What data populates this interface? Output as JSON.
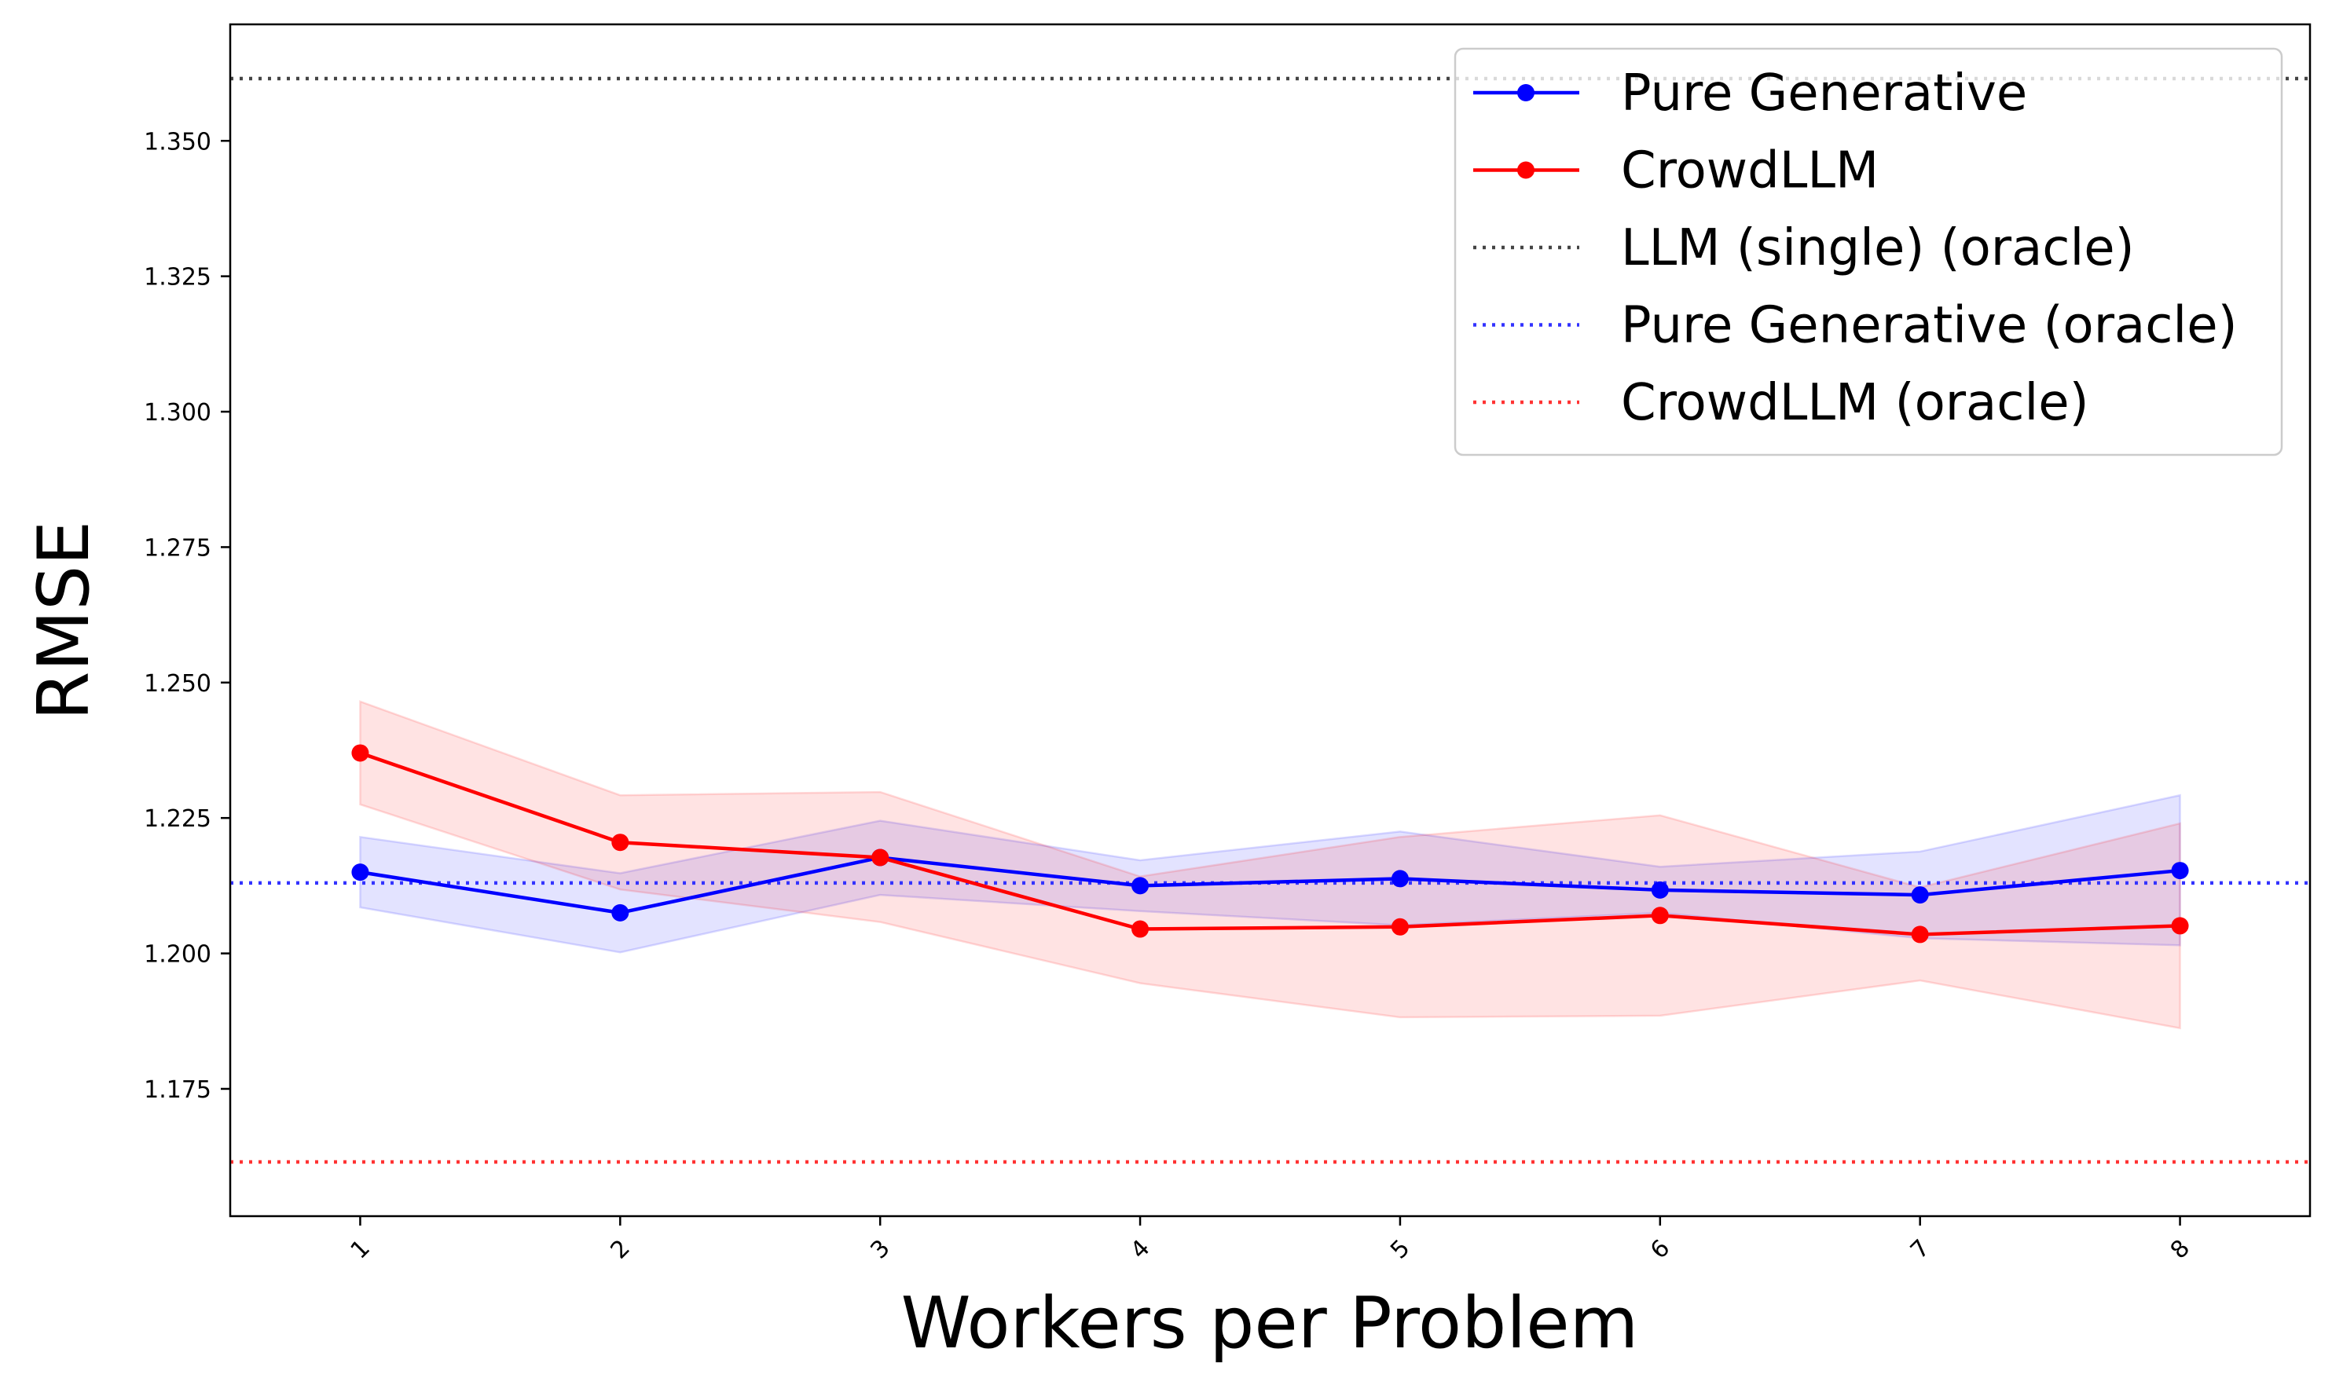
{
  "chart_data": {
    "type": "line",
    "title": "",
    "xlabel": "Workers per Problem",
    "ylabel": "RMSE",
    "x": [
      1,
      2,
      3,
      4,
      5,
      6,
      7,
      8
    ],
    "x_tick_labels": [
      "1",
      "2",
      "3",
      "4",
      "5",
      "6",
      "7",
      "8"
    ],
    "xlim": [
      0.5,
      8.5
    ],
    "ylim": [
      1.1515,
      1.3715
    ],
    "y_ticks": [
      1.175,
      1.2,
      1.225,
      1.25,
      1.275,
      1.3,
      1.325,
      1.35
    ],
    "y_tick_labels": [
      "1.175",
      "1.200",
      "1.225",
      "1.250",
      "1.275",
      "1.300",
      "1.325",
      "1.350"
    ],
    "grid": false,
    "legend_position": "top-right",
    "series": [
      {
        "name": "Pure Generative",
        "color": "#0000ff",
        "values": [
          1.215,
          1.2075,
          1.2177,
          1.2125,
          1.2138,
          1.2117,
          1.2108,
          1.2153
        ],
        "upper": [
          1.2215,
          1.2148,
          1.2245,
          1.2172,
          1.2225,
          1.216,
          1.2188,
          1.2292
        ],
        "lower": [
          1.2085,
          1.2002,
          1.2108,
          1.2078,
          1.2052,
          1.2075,
          1.2028,
          1.2015
        ]
      },
      {
        "name": "CrowdLLM",
        "color": "#ff0000",
        "values": [
          1.237,
          1.2205,
          1.2177,
          1.2045,
          1.2049,
          1.207,
          1.2035,
          1.2051
        ],
        "upper": [
          1.2465,
          1.2292,
          1.2298,
          1.2142,
          1.2215,
          1.2255,
          1.2122,
          1.224
        ],
        "lower": [
          1.2275,
          1.2118,
          1.2058,
          1.1945,
          1.1882,
          1.1885,
          1.195,
          1.1862
        ]
      }
    ],
    "reference_lines": [
      {
        "name": "LLM (single) (oracle)",
        "value": 1.3615,
        "color": "#444444"
      },
      {
        "name": "Pure Generative (oracle)",
        "value": 1.213,
        "color": "#3333ff"
      },
      {
        "name": "CrowdLLM (oracle)",
        "value": 1.1615,
        "color": "#ff3333"
      }
    ]
  }
}
